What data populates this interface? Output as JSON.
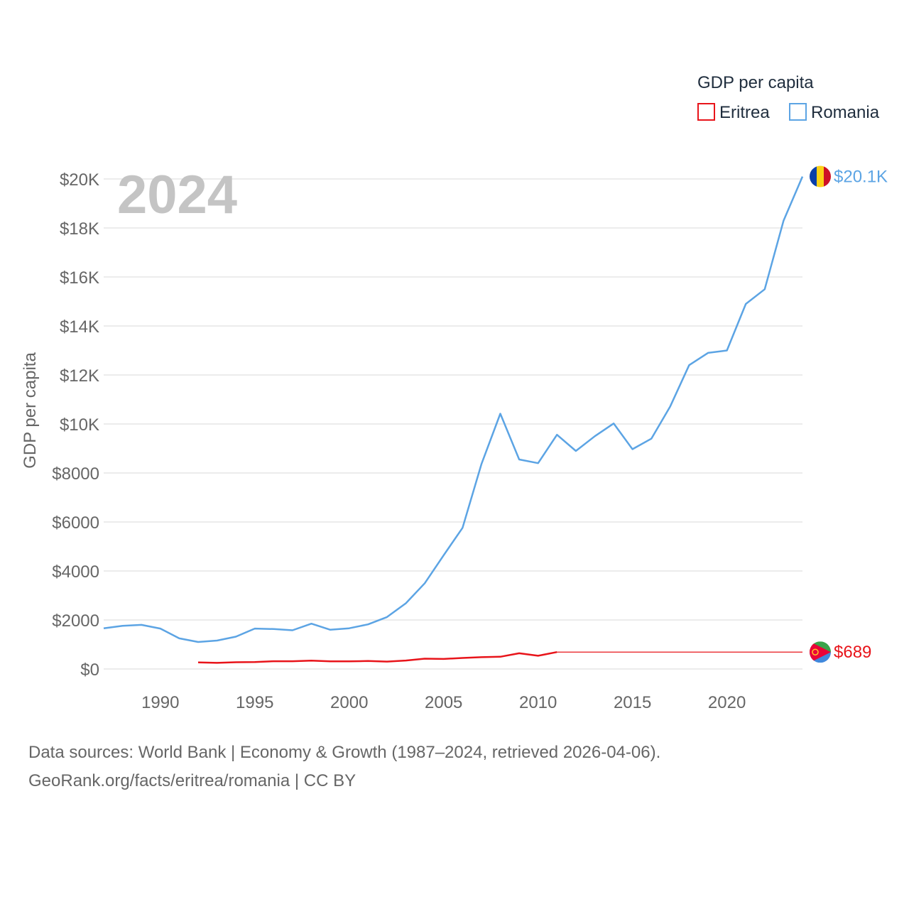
{
  "chart_data": {
    "type": "line",
    "title": "GDP per capita",
    "watermark_year": "2024",
    "ylabel": "GDP per capita",
    "xlabel": "",
    "xlim": [
      1987,
      2024
    ],
    "ylim": [
      0,
      20000
    ],
    "x_ticks": [
      1990,
      1995,
      2000,
      2005,
      2010,
      2015,
      2020
    ],
    "y_ticks": [
      {
        "value": 0,
        "label": "$0"
      },
      {
        "value": 2000,
        "label": "$2000"
      },
      {
        "value": 4000,
        "label": "$4000"
      },
      {
        "value": 6000,
        "label": "$6000"
      },
      {
        "value": 8000,
        "label": "$8000"
      },
      {
        "value": 10000,
        "label": "$10K"
      },
      {
        "value": 12000,
        "label": "$12K"
      },
      {
        "value": 14000,
        "label": "$14K"
      },
      {
        "value": 16000,
        "label": "$16K"
      },
      {
        "value": 18000,
        "label": "$18K"
      },
      {
        "value": 20000,
        "label": "$20K"
      }
    ],
    "legend": {
      "title": "GDP per capita",
      "placement": "top-right"
    },
    "series": [
      {
        "name": "Eritrea",
        "color": "#e8141a",
        "end_label": "$689",
        "flag_icon": "eritrea-flag-icon",
        "points": [
          [
            1992,
            270
          ],
          [
            1993,
            250
          ],
          [
            1994,
            275
          ],
          [
            1995,
            285
          ],
          [
            1996,
            315
          ],
          [
            1997,
            315
          ],
          [
            1998,
            340
          ],
          [
            1999,
            310
          ],
          [
            2000,
            310
          ],
          [
            2001,
            325
          ],
          [
            2002,
            300
          ],
          [
            2003,
            345
          ],
          [
            2004,
            420
          ],
          [
            2005,
            410
          ],
          [
            2006,
            450
          ],
          [
            2007,
            480
          ],
          [
            2008,
            500
          ],
          [
            2009,
            640
          ],
          [
            2010,
            540
          ],
          [
            2011,
            689
          ]
        ],
        "carry_forward_to": 2024
      },
      {
        "name": "Romania",
        "color": "#5ca4e4",
        "end_label": "$20.1K",
        "flag_icon": "romania-flag-icon",
        "points": [
          [
            1987,
            1660
          ],
          [
            1988,
            1760
          ],
          [
            1989,
            1800
          ],
          [
            1990,
            1650
          ],
          [
            1991,
            1250
          ],
          [
            1992,
            1100
          ],
          [
            1993,
            1160
          ],
          [
            1994,
            1320
          ],
          [
            1995,
            1650
          ],
          [
            1996,
            1630
          ],
          [
            1997,
            1580
          ],
          [
            1998,
            1850
          ],
          [
            1999,
            1600
          ],
          [
            2000,
            1660
          ],
          [
            2001,
            1820
          ],
          [
            2002,
            2120
          ],
          [
            2003,
            2680
          ],
          [
            2004,
            3500
          ],
          [
            2005,
            4640
          ],
          [
            2006,
            5760
          ],
          [
            2007,
            8360
          ],
          [
            2008,
            10420
          ],
          [
            2009,
            8550
          ],
          [
            2010,
            8400
          ],
          [
            2011,
            9560
          ],
          [
            2012,
            8900
          ],
          [
            2013,
            9500
          ],
          [
            2014,
            10020
          ],
          [
            2015,
            8970
          ],
          [
            2016,
            9400
          ],
          [
            2017,
            10720
          ],
          [
            2018,
            12400
          ],
          [
            2019,
            12900
          ],
          [
            2020,
            13000
          ],
          [
            2021,
            14900
          ],
          [
            2022,
            15500
          ],
          [
            2023,
            18300
          ],
          [
            2024,
            20100
          ]
        ]
      }
    ]
  },
  "footer": {
    "sources": "Data sources: World Bank | Economy & Growth (1987–2024, retrieved 2026-04-06).",
    "credit": "GeoRank.org/facts/eritrea/romania | CC BY"
  }
}
